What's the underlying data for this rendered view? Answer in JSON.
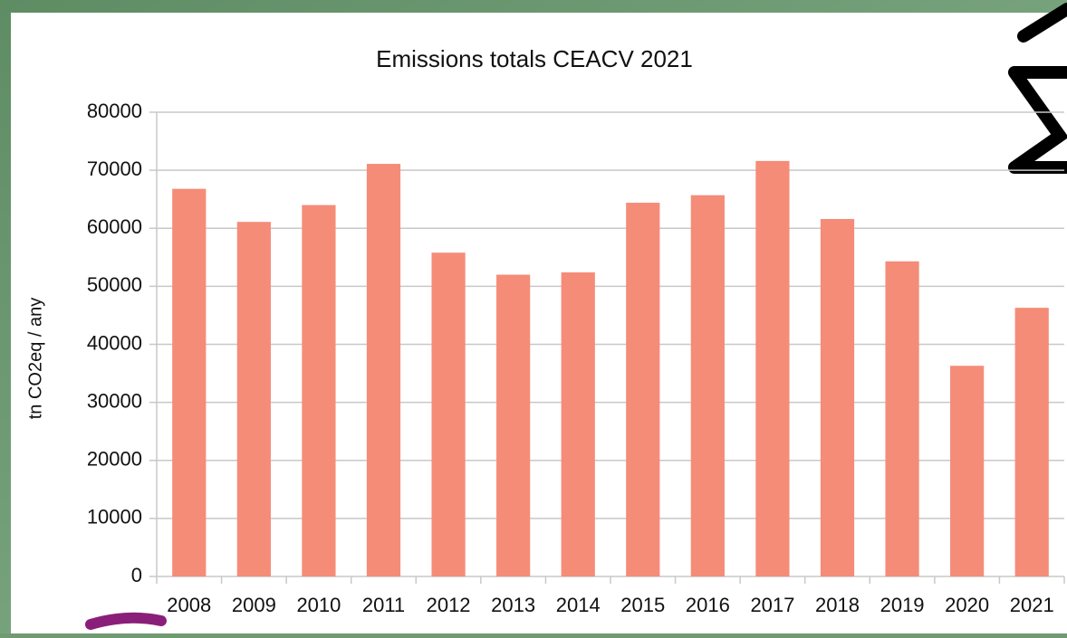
{
  "chart_data": {
    "type": "bar",
    "title": "Emissions totals CEACV 2021",
    "y_label": "tn CO2eq / any",
    "categories": [
      "2008",
      "2009",
      "2010",
      "2011",
      "2012",
      "2013",
      "2014",
      "2015",
      "2016",
      "2017",
      "2018",
      "2019",
      "2020",
      "2021"
    ],
    "values": [
      66800,
      61100,
      64000,
      71100,
      55800,
      52000,
      52400,
      64400,
      65700,
      71600,
      61600,
      54300,
      36300,
      46300
    ],
    "color": "#f58c78",
    "ylim": [
      0,
      80000
    ],
    "yticks": [
      0,
      10000,
      20000,
      30000,
      40000,
      50000,
      60000,
      70000,
      80000
    ],
    "grid": true
  }
}
